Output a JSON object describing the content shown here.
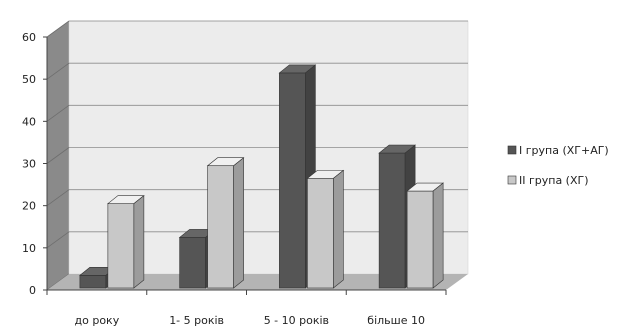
{
  "chart_data": {
    "type": "bar",
    "categories": [
      "до року",
      "1- 5 років",
      "5 - 10 років",
      "більше 10"
    ],
    "series": [
      {
        "name": "I група (ХГ+АГ)",
        "values": [
          3,
          12,
          51,
          32
        ],
        "color": "#555555"
      },
      {
        "name": "II група (ХГ)",
        "values": [
          20,
          29,
          26,
          23
        ],
        "color": "#c8c8c8"
      }
    ],
    "ylim": [
      0,
      60
    ],
    "yticks": [
      0,
      10,
      20,
      30,
      40,
      50,
      60
    ],
    "grid": true,
    "legend_position": "right",
    "style": "3d-clustered"
  }
}
